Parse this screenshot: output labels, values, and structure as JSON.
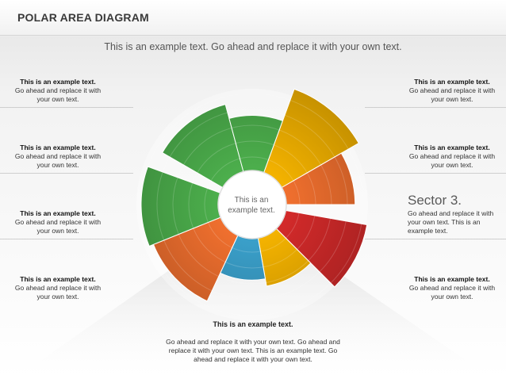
{
  "header": {
    "title": "POLAR AREA DIAGRAM"
  },
  "subtitle": "This is an example text. Go ahead and replace it with your own text.",
  "left_blocks": [
    {
      "bold": "This is an example text.",
      "text": "Go ahead and replace it with your own text."
    },
    {
      "bold": "This is an example text.",
      "text": "Go ahead and replace it with your own text."
    },
    {
      "bold": "This is an example text.",
      "text": "Go ahead and replace it with your own text."
    },
    {
      "bold": "This is an example text.",
      "text": "Go ahead and replace it with your own text."
    }
  ],
  "right_blocks": [
    {
      "bold": "This is an example text.",
      "text": "Go ahead and replace it with your own text."
    },
    {
      "bold": "This is an example text.",
      "text": "Go ahead and replace it with your own text."
    },
    {
      "bold": "This is an example text.",
      "text": "Go ahead and replace it with your own text."
    }
  ],
  "sector_callout": {
    "heading": "Sector 3.",
    "text": "Go ahead and replace it with your own text. This is an example text."
  },
  "center_label": "This is an example text.",
  "bottom": {
    "heading": "This is an example text.",
    "text": "Go ahead and replace it with your own text. Go ahead and replace it with your own text. This is an example text. Go ahead and replace it with your own text."
  },
  "colors": {
    "green": "#4cae4c",
    "blue": "#3a9fc9",
    "yellow": "#f3b200",
    "orange": "#ef6f2e",
    "red": "#d22a2a"
  },
  "sectors": [
    {
      "color": "green",
      "start": -150,
      "end": -105,
      "radius": 0.79
    },
    {
      "color": "green",
      "start": -105,
      "end": -70,
      "radius": 0.63
    },
    {
      "color": "yellow",
      "start": -70,
      "end": -30,
      "radius": 1.0
    },
    {
      "color": "orange",
      "start": -30,
      "end": 0,
      "radius": 0.78
    },
    {
      "color": "red",
      "start": 10,
      "end": 45,
      "radius": 0.93
    },
    {
      "color": "yellow",
      "start": 45,
      "end": 80,
      "radius": 0.56
    },
    {
      "color": "blue",
      "start": 80,
      "end": 115,
      "radius": 0.48
    },
    {
      "color": "orange",
      "start": 115,
      "end": 158,
      "radius": 0.82
    },
    {
      "color": "green",
      "start": 158,
      "end": 200,
      "radius": 0.87
    }
  ]
}
